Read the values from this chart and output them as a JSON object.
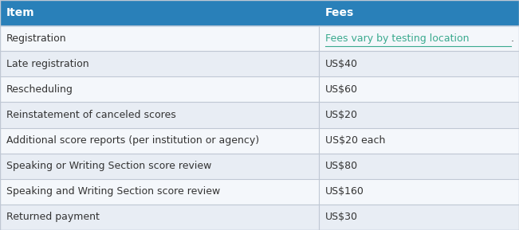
{
  "header": [
    "Item",
    "Fees"
  ],
  "rows": [
    [
      "Registration",
      "Fees vary by testing location",
      "."
    ],
    [
      "Late registration",
      "US$40",
      ""
    ],
    [
      "Rescheduling",
      "US$60",
      ""
    ],
    [
      "Reinstatement of canceled scores",
      "US$20",
      ""
    ],
    [
      "Additional score reports (per institution or agency)",
      "US$20 each",
      ""
    ],
    [
      "Speaking or Writing Section score review",
      "US$80",
      ""
    ],
    [
      "Speaking and Writing Section score review",
      "US$160",
      ""
    ],
    [
      "Returned payment",
      "US$30",
      ""
    ]
  ],
  "col_split": 0.615,
  "header_bg": "#2980b9",
  "header_text_color": "#ffffff",
  "row_bg_odd": "#f4f7fb",
  "row_bg_even": "#e8edf4",
  "border_color": "#c0c8d4",
  "text_color": "#333333",
  "link_color": "#3aaa8e",
  "font_size": 9.0,
  "header_font_size": 10.0
}
